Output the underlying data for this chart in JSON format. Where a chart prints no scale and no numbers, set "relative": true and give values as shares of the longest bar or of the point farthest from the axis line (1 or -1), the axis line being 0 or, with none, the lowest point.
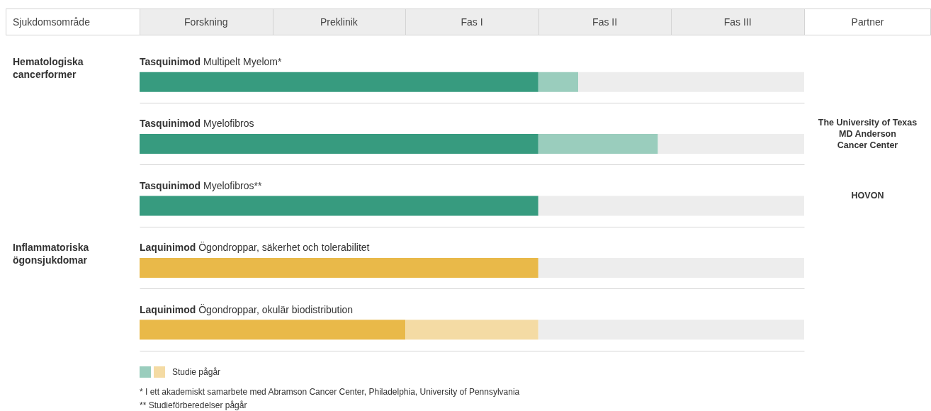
{
  "chart_data": {
    "type": "bar",
    "orientation": "horizontal",
    "stacked": true,
    "relative": true,
    "categories": [
      "Tasquinimod Multipelt Myelom*",
      "Tasquinimod Myelofibros",
      "Tasquinimod Myelofibros**",
      "Laquinimod Ögondroppar, säkerhet och tolerabilitet",
      "Laquinimod Ögondroppar, okulär biodistribution"
    ],
    "series": [
      {
        "color": "#379b7f",
        "values": [
          0.6,
          0.6,
          0.6,
          null,
          null
        ]
      },
      {
        "name": "Studie pågår",
        "color": "#9acdbd",
        "values": [
          0.06,
          0.18,
          null,
          null,
          null
        ]
      },
      {
        "color": "#e9b949",
        "values": [
          null,
          null,
          null,
          0.6,
          0.4
        ]
      },
      {
        "color": "#f4dba4",
        "values": [
          null,
          null,
          null,
          null,
          0.2
        ]
      },
      {
        "color": "#ededed",
        "values": [
          0.34,
          0.22,
          0.4,
          0.4,
          0.4
        ]
      }
    ],
    "grid": "y",
    "legend": "bottom left",
    "annotations": [
      "Sjukdomsområde",
      "Forskning",
      "Preklinik",
      "Fas I",
      "Fas II",
      "Fas III",
      "Partner",
      "Hematologiska\ncancerformer",
      "Inflammatoriska\nögonsjukdomar",
      "The University of Texas\nMD Anderson\nCancer Center",
      "HOVON",
      "* I ett akademiskt samarbete med Abramson Cancer Center, Philadelphia, University of Pennsylvania",
      "** Studieförberedelser pågår"
    ]
  }
}
